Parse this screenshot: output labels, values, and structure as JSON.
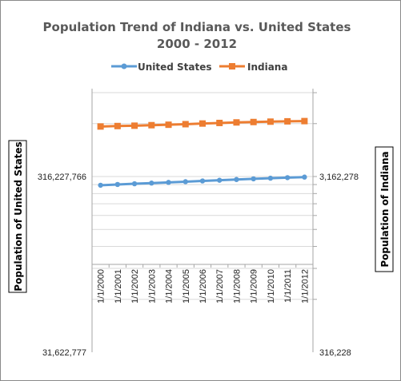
{
  "chart_data": {
    "type": "line",
    "title_line1": "Population Trend of Indiana vs. United States",
    "title_line2": "2000 - 2012",
    "categories": [
      "1/1/2000",
      "1/1/2001",
      "1/1/2002",
      "1/1/2003",
      "1/1/2004",
      "1/1/2005",
      "1/1/2006",
      "1/1/2007",
      "1/1/2008",
      "1/1/2009",
      "1/1/2010",
      "1/1/2011",
      "1/1/2012"
    ],
    "y_left": {
      "label": "Population of United States",
      "scale": "log",
      "ticks": [
        {
          "label": "316,227,766",
          "value": 316227766
        },
        {
          "label": "31,622,777",
          "value": 31622777
        }
      ]
    },
    "y_right": {
      "label": "Population of Indiana",
      "scale": "log",
      "ticks": [
        {
          "label": "3,162,278",
          "value": 3162278
        },
        {
          "label": "316,228",
          "value": 316228
        }
      ]
    },
    "legend_position": "top",
    "series": [
      {
        "name": "United States",
        "axis": "left",
        "color": "#5b9bd5",
        "values": [
          282162411,
          284968955,
          287625193,
          290107933,
          292805298,
          295516599,
          298379912,
          301231207,
          304093966,
          306771529,
          309348193,
          311587816,
          313914040
        ]
      },
      {
        "name": "Indiana",
        "axis": "right",
        "color": "#ed7d31",
        "values": [
          6091866,
          6127760,
          6155967,
          6196638,
          6233007,
          6278616,
          6332669,
          6379599,
          6424806,
          6459325,
          6490622,
          6516922,
          6537334
        ]
      }
    ]
  }
}
